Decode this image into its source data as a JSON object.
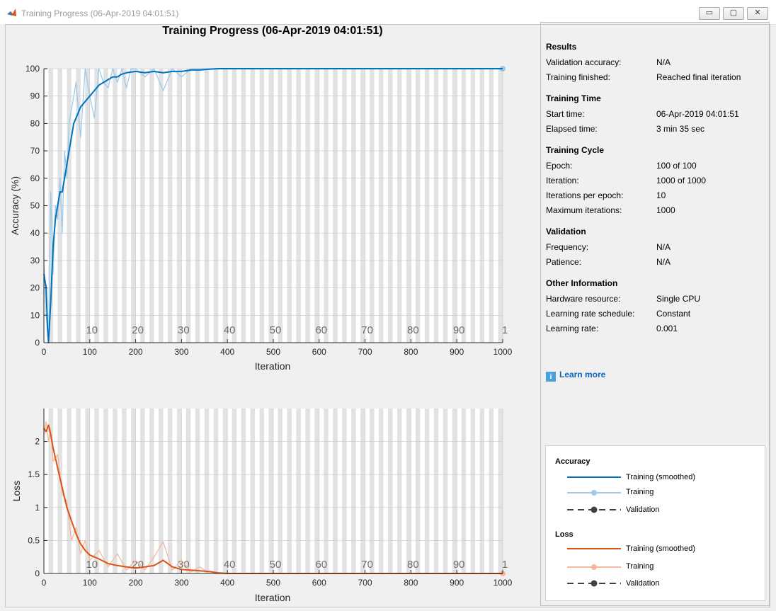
{
  "window": {
    "title": "Training Progress (06-Apr-2019 04:01:51)",
    "min_glyph": "▭",
    "max_glyph": "▢",
    "close_glyph": "✕"
  },
  "chart_data": [
    {
      "type": "line",
      "title": "Training Progress (06-Apr-2019 04:01:51)",
      "xlabel": "Iteration",
      "ylabel": "Accuracy (%)",
      "xlim": [
        0,
        1000
      ],
      "ylim": [
        0,
        100
      ],
      "xticks": [
        0,
        100,
        200,
        300,
        400,
        500,
        600,
        700,
        800,
        900,
        1000
      ],
      "yticks": [
        0,
        10,
        20,
        30,
        40,
        50,
        60,
        70,
        80,
        90,
        100
      ],
      "epoch_labels": [
        "10",
        "20",
        "30",
        "40",
        "50",
        "60",
        "70",
        "80",
        "90",
        "1"
      ],
      "grid": true,
      "series": [
        {
          "name": "Training (smoothed)",
          "color": "#0072bd",
          "x": [
            0,
            5,
            8,
            10,
            15,
            20,
            25,
            30,
            35,
            40,
            45,
            50,
            55,
            60,
            65,
            70,
            80,
            90,
            100,
            110,
            120,
            130,
            140,
            150,
            160,
            170,
            180,
            200,
            220,
            240,
            260,
            280,
            300,
            320,
            340,
            360,
            380,
            1000
          ],
          "values": [
            25,
            20,
            5,
            0,
            15,
            35,
            45,
            50,
            55,
            55,
            60,
            65,
            70,
            75,
            80,
            82,
            86,
            88,
            90,
            92,
            94,
            95,
            96,
            97,
            97,
            98,
            98.5,
            99,
            98.5,
            99,
            98.5,
            99,
            99,
            99.5,
            99.5,
            99.8,
            100,
            100
          ]
        },
        {
          "name": "Training",
          "color": "#9ecae9",
          "x": [
            0,
            5,
            10,
            15,
            20,
            25,
            30,
            35,
            40,
            45,
            50,
            55,
            60,
            70,
            80,
            90,
            100,
            110,
            120,
            130,
            140,
            150,
            160,
            170,
            180,
            190,
            200,
            220,
            240,
            260,
            280,
            300,
            320,
            340,
            360,
            380,
            1000
          ],
          "values": [
            30,
            10,
            0,
            55,
            25,
            50,
            45,
            60,
            40,
            70,
            60,
            80,
            85,
            95,
            75,
            100,
            90,
            82,
            100,
            95,
            93,
            100,
            95,
            100,
            93,
            100,
            100,
            97,
            100,
            92,
            100,
            97,
            100,
            100,
            100,
            100,
            100
          ]
        }
      ]
    },
    {
      "type": "line",
      "xlabel": "Iteration",
      "ylabel": "Loss",
      "xlim": [
        0,
        1000
      ],
      "ylim": [
        0,
        2.5
      ],
      "xticks": [
        0,
        100,
        200,
        300,
        400,
        500,
        600,
        700,
        800,
        900,
        1000
      ],
      "yticks": [
        0,
        0.5,
        1,
        1.5,
        2
      ],
      "ytick_labels": [
        "0",
        "0.5",
        "1",
        "1.5",
        "2"
      ],
      "epoch_labels": [
        "10",
        "20",
        "30",
        "40",
        "50",
        "60",
        "70",
        "80",
        "90",
        "1"
      ],
      "grid": true,
      "series": [
        {
          "name": "Training (smoothed)",
          "color": "#d95319",
          "x": [
            0,
            5,
            10,
            15,
            20,
            30,
            40,
            50,
            60,
            70,
            80,
            90,
            100,
            120,
            140,
            160,
            180,
            200,
            220,
            240,
            260,
            280,
            300,
            320,
            340,
            360,
            380,
            400,
            1000
          ],
          "values": [
            2.2,
            2.15,
            2.25,
            2.1,
            1.9,
            1.6,
            1.3,
            1.0,
            0.8,
            0.6,
            0.45,
            0.35,
            0.28,
            0.22,
            0.15,
            0.12,
            0.1,
            0.08,
            0.1,
            0.12,
            0.2,
            0.1,
            0.06,
            0.05,
            0.04,
            0.03,
            0.01,
            0.0,
            0.0
          ]
        },
        {
          "name": "Training",
          "color": "#f4b89e",
          "x": [
            0,
            5,
            10,
            15,
            20,
            30,
            40,
            50,
            60,
            70,
            80,
            90,
            100,
            120,
            140,
            160,
            180,
            200,
            220,
            240,
            260,
            280,
            300,
            320,
            340,
            360,
            400,
            1000
          ],
          "values": [
            2.1,
            2.3,
            2.0,
            2.2,
            1.7,
            1.8,
            1.2,
            1.1,
            0.5,
            0.7,
            0.3,
            0.5,
            0.2,
            0.35,
            0.1,
            0.3,
            0.05,
            0.2,
            0.05,
            0.25,
            0.48,
            0.05,
            0.2,
            0.02,
            0.1,
            0.0,
            0.0,
            0.0
          ]
        }
      ]
    }
  ],
  "results": {
    "heading": "Results",
    "rows": [
      {
        "label": "Validation accuracy:",
        "value": "N/A"
      },
      {
        "label": "Training finished:",
        "value": "Reached final iteration"
      }
    ]
  },
  "training_time": {
    "heading": "Training Time",
    "rows": [
      {
        "label": "Start time:",
        "value": "06-Apr-2019 04:01:51"
      },
      {
        "label": "Elapsed time:",
        "value": "3 min 35 sec"
      }
    ]
  },
  "training_cycle": {
    "heading": "Training Cycle",
    "rows": [
      {
        "label": "Epoch:",
        "value": "100 of 100"
      },
      {
        "label": "Iteration:",
        "value": "1000 of 1000"
      },
      {
        "label": "Iterations per epoch:",
        "value": "10"
      },
      {
        "label": "Maximum iterations:",
        "value": "1000"
      }
    ]
  },
  "validation": {
    "heading": "Validation",
    "rows": [
      {
        "label": "Frequency:",
        "value": "N/A"
      },
      {
        "label": "Patience:",
        "value": "N/A"
      }
    ]
  },
  "other_info": {
    "heading": "Other Information",
    "rows": [
      {
        "label": "Hardware resource:",
        "value": "Single CPU"
      },
      {
        "label": "Learning rate schedule:",
        "value": "Constant"
      },
      {
        "label": "Learning rate:",
        "value": "0.001"
      }
    ]
  },
  "learn_more": {
    "label": "Learn more",
    "icon": "info-icon"
  },
  "legend": {
    "accuracy_heading": "Accuracy",
    "loss_heading": "Loss",
    "items": {
      "acc_smoothed": "Training (smoothed)",
      "acc_training": "Training",
      "acc_validation": "Validation",
      "loss_smoothed": "Training (smoothed)",
      "loss_training": "Training",
      "loss_validation": "Validation"
    }
  }
}
